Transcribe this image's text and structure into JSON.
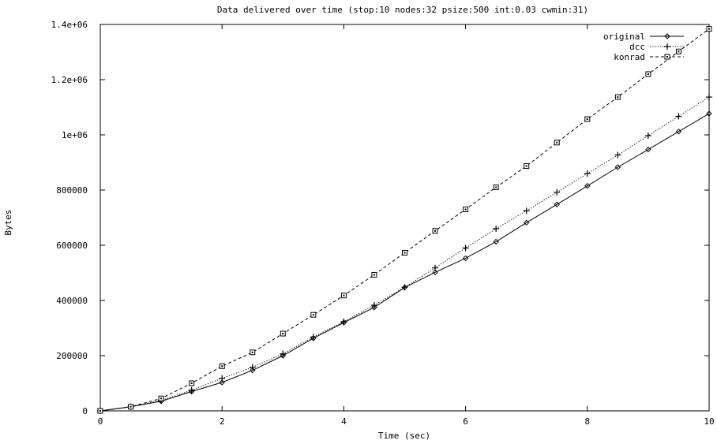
{
  "chart_data": {
    "type": "line",
    "title": "Data delivered over time (stop:10 nodes:32 psize:500 int:0.03 cwmin:31)",
    "xlabel": "Time (sec)",
    "ylabel": "Bytes",
    "xlim": [
      0,
      10
    ],
    "ylim": [
      0,
      1400000
    ],
    "x_ticks": [
      "0",
      "2",
      "4",
      "6",
      "8",
      "10"
    ],
    "y_ticks": [
      "0",
      "200000",
      "400000",
      "600000",
      "800000",
      "1e+06",
      "1.2e+06",
      "1.4e+06"
    ],
    "grid": false,
    "legend_position": "top-right",
    "x": [
      0,
      0.5,
      1,
      1.5,
      2,
      2.5,
      3,
      3.5,
      4,
      4.5,
      5,
      5.5,
      6,
      6.5,
      7,
      7.5,
      8,
      8.5,
      9,
      9.5,
      10
    ],
    "series": [
      {
        "name": "original",
        "style": "solid",
        "marker": "diamond",
        "values": [
          0,
          15000,
          35000,
          70000,
          103000,
          147000,
          200000,
          263000,
          320000,
          375000,
          447000,
          502000,
          553000,
          613000,
          682000,
          748000,
          815000,
          883000,
          947000,
          1012000,
          1077000
        ]
      },
      {
        "name": "dcc",
        "style": "dotted",
        "marker": "plus",
        "values": [
          0,
          15000,
          38000,
          75000,
          118000,
          158000,
          207000,
          268000,
          323000,
          383000,
          448000,
          518000,
          590000,
          660000,
          725000,
          792000,
          860000,
          927000,
          997000,
          1067000,
          1137000
        ]
      },
      {
        "name": "konrad",
        "style": "dashed",
        "marker": "square",
        "values": [
          0,
          15000,
          45000,
          100000,
          162000,
          212000,
          280000,
          348000,
          418000,
          493000,
          573000,
          652000,
          730000,
          810000,
          887000,
          972000,
          1057000,
          1137000,
          1220000,
          1302000,
          1384000
        ]
      }
    ]
  }
}
